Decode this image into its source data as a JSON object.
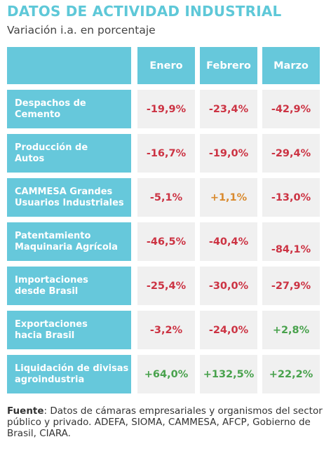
{
  "title": "DATOS DE ACTIVIDAD INDUSTRIAL",
  "subtitle": "Variación i.a. en porcentaje",
  "columns": [
    "Enero",
    "Febrero",
    "Marzo"
  ],
  "rows": [
    {
      "label": "Despachos de Cemento",
      "values": [
        "-19,9%",
        "-23,4%",
        "-42,9%"
      ]
    },
    {
      "label": "Producción de Autos",
      "values": [
        "-16,7%",
        "-19,0%",
        "-29,4%"
      ]
    },
    {
      "label": "CAMMESA Grandes Usuarios Industriales",
      "values": [
        "-5,1%",
        "+1,1%",
        "-13,0%"
      ]
    },
    {
      "label": "Patentamiento Maquinaria Agrícola",
      "values": [
        "-46,5%",
        "-40,4%",
        "-84,1%"
      ]
    },
    {
      "label": "Importaciones desde Brasil",
      "values": [
        "-25,4%",
        "-30,0%",
        "-27,9%"
      ]
    },
    {
      "label": "Exportaciones hacia Brasil",
      "values": [
        "-3,2%",
        "-24,0%",
        "+2,8%"
      ]
    },
    {
      "label": "Liquidación de divisas agroindustria",
      "values": [
        "+64,0%",
        "+132,5%",
        "+22,2%"
      ]
    }
  ],
  "footer": {
    "label": "Fuente",
    "text": ": Datos de cámaras empresariales y organismos del sector público y privado. ADEFA, SIOMA, CAMMESA, AFCP, Gobierno de Brasil, CIARA."
  },
  "colors": {
    "header": "#66c8db",
    "title": "#5ec8d8",
    "negative": "#cc3343",
    "slight_positive": "#d98a2e",
    "positive": "#49a24d",
    "cell_bg": "#f0f0f0"
  }
}
